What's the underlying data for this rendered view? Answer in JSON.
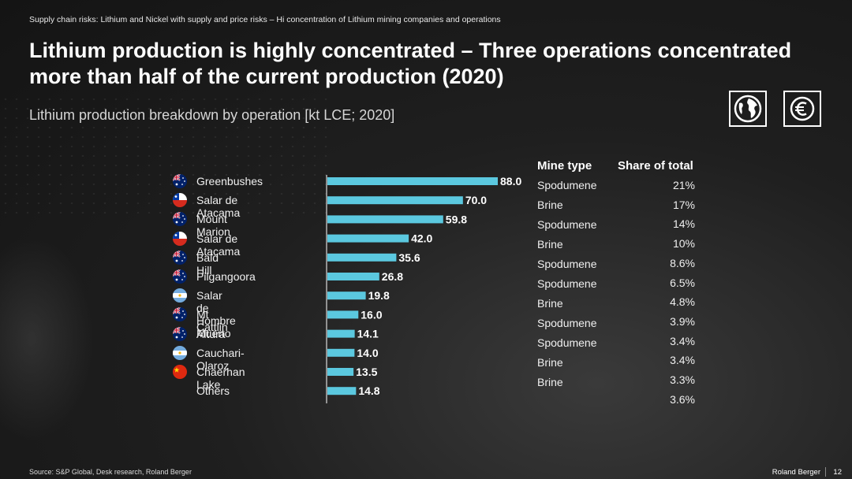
{
  "breadcrumb": "Supply chain risks: Lithium  and Nickel with  supply and price risks – Hi concentration of Lithium mining companies and operations",
  "title": "Lithium production is highly concentrated – Three operations concentrated more than half of the current production (2020)",
  "subtitle": "Lithium production breakdown by operation [kt LCE; 2020]",
  "icons": {
    "globe": "globe-icon",
    "euro": "euro-icon"
  },
  "colors": {
    "bar": "#5bc8df",
    "axis": "#ffffff"
  },
  "columns": {
    "mine_type": "Mine type",
    "share": "Share of total"
  },
  "rows": [
    {
      "label": "Greenbushes",
      "flag": "australia",
      "mine_type": "Spodumene",
      "share": "21%"
    },
    {
      "label": "Salar de Atacama",
      "flag": "chile",
      "mine_type": "Brine",
      "share": "17%"
    },
    {
      "label": "Mount Marion",
      "flag": "australia",
      "mine_type": "Spodumene",
      "share": "14%"
    },
    {
      "label": "Salar de Atacama",
      "flag": "chile",
      "mine_type": "Brine",
      "share": "10%"
    },
    {
      "label": "Bald Hill",
      "flag": "australia",
      "mine_type": "Spodumene",
      "share": "8.6%"
    },
    {
      "label": "Pilgangoora",
      "flag": "australia",
      "mine_type": "Spodumene",
      "share": "6.5%"
    },
    {
      "label": "Salar de Hombre Muerto",
      "flag": "argentina",
      "mine_type": "Brine",
      "share": "4.8%"
    },
    {
      "label": "Mt Cattlin",
      "flag": "australia",
      "mine_type": "Spodumene",
      "share": "3.9%"
    },
    {
      "label": "Altura",
      "flag": "australia",
      "mine_type": "Spodumene",
      "share": "3.4%"
    },
    {
      "label": "Cauchari-Olaroz",
      "flag": "argentina",
      "mine_type": "Brine",
      "share": "3.4%"
    },
    {
      "label": "Chaerhan Lake",
      "flag": "china",
      "mine_type": "Brine",
      "share": "3.3%"
    },
    {
      "label": "Others",
      "flag": "",
      "mine_type": "",
      "share": "3.6%"
    }
  ],
  "chart_data": {
    "type": "bar",
    "orientation": "horizontal",
    "categories": [
      "Greenbushes",
      "Salar de Atacama",
      "Mount Marion",
      "Salar de Atacama",
      "Bald Hill",
      "Pilgangoora",
      "Salar de Hombre Muerto",
      "Mt Cattlin",
      "Altura",
      "Cauchari-Olaroz",
      "Chaerhan Lake",
      "Others"
    ],
    "values": [
      88.0,
      70.0,
      59.8,
      42.0,
      35.6,
      26.8,
      19.8,
      16.0,
      14.1,
      14.0,
      13.5,
      14.8
    ],
    "value_labels": [
      "88.0",
      "70.0",
      "59.8",
      "42.0",
      "35.6",
      "26.8",
      "19.8",
      "16.0",
      "14.1",
      "14.0",
      "13.5",
      "14.8"
    ],
    "title": "Lithium production breakdown by operation [kt LCE; 2020]",
    "xlim": [
      0,
      88.0
    ],
    "grid": false,
    "legend": "none"
  },
  "footer": {
    "source": "Source: S&P Global, Desk research, Roland Berger",
    "brand": "Roland Berger",
    "page": "12"
  }
}
